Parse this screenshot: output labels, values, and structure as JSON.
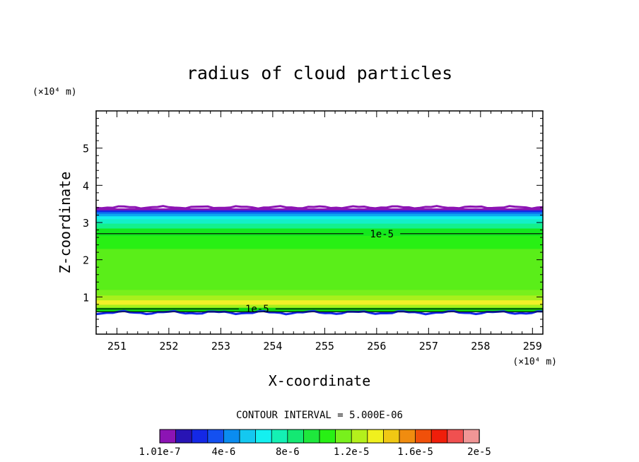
{
  "chart_data": {
    "type": "contour",
    "title": "radius of cloud particles",
    "xlabel": "X-coordinate",
    "ylabel": "Z-coordinate",
    "x_unit": "(×10⁴ m)",
    "y_unit": "(×10⁴ m)",
    "xlim": [
      250.6,
      259.2
    ],
    "ylim": [
      0,
      6
    ],
    "x_ticks": [
      251,
      252,
      253,
      254,
      255,
      256,
      257,
      258,
      259
    ],
    "y_ticks": [
      1,
      2,
      3,
      4,
      5
    ],
    "contour_interval_text": "CONTOUR INTERVAL = 5.000E-06",
    "contour_lines": [
      {
        "level_label": "1e-5",
        "z": 2.7,
        "label_x": 256.1
      },
      {
        "level_label": "1e-5",
        "z": 0.68,
        "label_x": 253.7
      }
    ],
    "cloud_base_z": 0.6,
    "cloud_top_z": 3.38,
    "layers": [
      {
        "z0": 0.6,
        "z1": 0.72,
        "color": "#12d40f"
      },
      {
        "z0": 0.72,
        "z1": 0.8,
        "color": "#a8f01c"
      },
      {
        "z0": 0.8,
        "z1": 0.92,
        "color": "#f0f028"
      },
      {
        "z0": 0.92,
        "z1": 1.05,
        "color": "#a8f01c"
      },
      {
        "z0": 1.05,
        "z1": 1.2,
        "color": "#78f01c"
      },
      {
        "z0": 1.2,
        "z1": 2.3,
        "color": "#5aee19"
      },
      {
        "z0": 2.3,
        "z1": 2.65,
        "color": "#28f014"
      },
      {
        "z0": 2.65,
        "z1": 2.85,
        "color": "#14e81e"
      },
      {
        "z0": 2.85,
        "z1": 2.98,
        "color": "#14f08c"
      },
      {
        "z0": 2.98,
        "z1": 3.1,
        "color": "#14f0c8"
      },
      {
        "z0": 3.1,
        "z1": 3.18,
        "color": "#14f0f0"
      },
      {
        "z0": 3.18,
        "z1": 3.24,
        "color": "#0aaaf0"
      },
      {
        "z0": 3.24,
        "z1": 3.29,
        "color": "#0a78f0"
      },
      {
        "z0": 3.29,
        "z1": 3.34,
        "color": "#1428e6"
      },
      {
        "z0": 3.34,
        "z1": 3.38,
        "color": "#8c14b4"
      }
    ],
    "colorbar": {
      "colors": [
        "#8c14b4",
        "#2814b4",
        "#1428e6",
        "#1450f0",
        "#0a8cf0",
        "#14c8f0",
        "#14f0f0",
        "#14f0b4",
        "#14e873",
        "#1ee83c",
        "#28f014",
        "#78f01c",
        "#b4f01c",
        "#f0f01e",
        "#f0c814",
        "#f08c0f",
        "#f0500a",
        "#f01e0a",
        "#f05050",
        "#f09696"
      ],
      "labels": [
        "1.01e-7",
        "4e-6",
        "8e-6",
        "1.2e-5",
        "1.6e-5",
        "2e-5"
      ]
    }
  }
}
